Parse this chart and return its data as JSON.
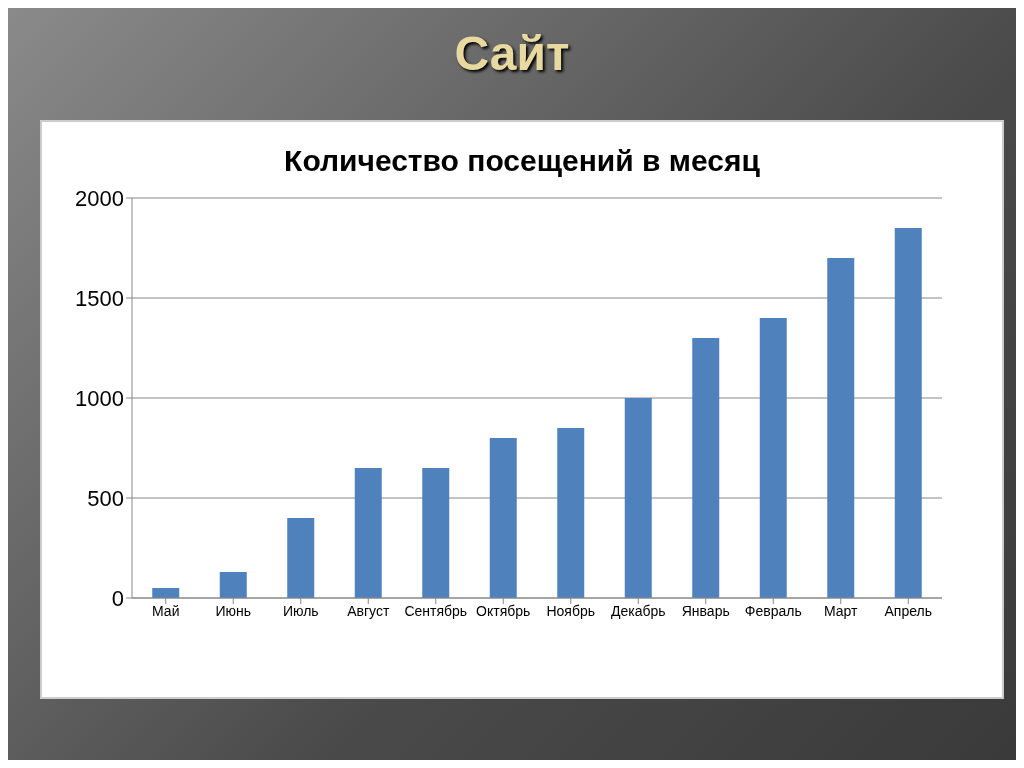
{
  "chart_data": {
    "type": "bar",
    "title": "Сайт",
    "subtitle": "Количество посещений в месяц",
    "categories": [
      "Май",
      "Июнь",
      "Июль",
      "Август",
      "Сентябрь",
      "Октябрь",
      "Ноябрь",
      "Декабрь",
      "Январь",
      "Февраль",
      "Март",
      "Апрель"
    ],
    "values": [
      50,
      130,
      400,
      650,
      650,
      800,
      850,
      1000,
      1300,
      1400,
      1700,
      1850
    ],
    "color": "#4f81bd",
    "ylim": [
      0,
      2000
    ],
    "yticks": [
      0,
      500,
      1000,
      1500,
      2000
    ],
    "grid": "y"
  }
}
